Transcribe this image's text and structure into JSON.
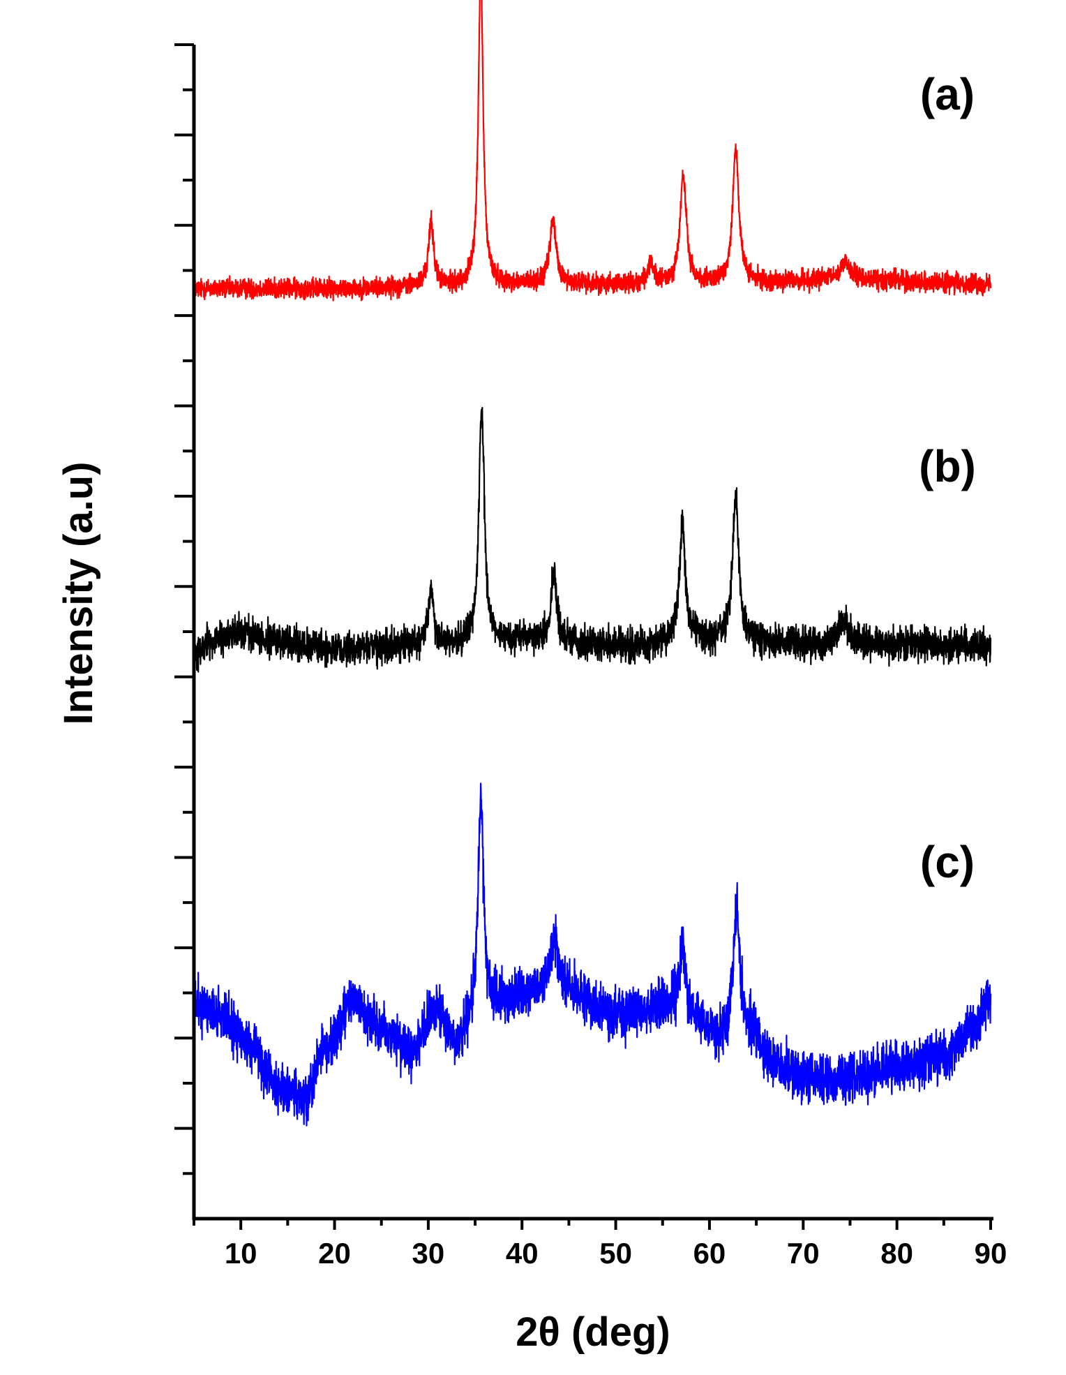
{
  "chart_data": {
    "type": "line",
    "title": "",
    "xlabel": "2θ (deg)",
    "ylabel": "Intensity (a.u)",
    "xlim": [
      5,
      90
    ],
    "ylim": [
      0,
      13
    ],
    "x_ticks": [
      10,
      20,
      30,
      40,
      50,
      60,
      70,
      80,
      90
    ],
    "grid": false,
    "y_tick_labels_shown": false,
    "series": [
      {
        "name": "(a)",
        "label": "(a)",
        "color": "#ff0000",
        "baseline": 10.3,
        "noise": 0.12,
        "background": [
          [
            5,
            0
          ],
          [
            20,
            0
          ],
          [
            30,
            0.02
          ],
          [
            40,
            0.05
          ],
          [
            60,
            0.05
          ],
          [
            75,
            0.1
          ],
          [
            90,
            0.05
          ]
        ],
        "peaks": [
          {
            "x": 30.3,
            "height": 0.7,
            "width": 0.35
          },
          {
            "x": 35.6,
            "height": 3.5,
            "width": 0.3
          },
          {
            "x": 43.3,
            "height": 0.7,
            "width": 0.4
          },
          {
            "x": 53.7,
            "height": 0.2,
            "width": 0.4
          },
          {
            "x": 57.2,
            "height": 1.2,
            "width": 0.4
          },
          {
            "x": 62.8,
            "height": 1.5,
            "width": 0.4
          },
          {
            "x": 74.5,
            "height": 0.2,
            "width": 0.6
          }
        ]
      },
      {
        "name": "(b)",
        "label": "(b)",
        "color": "#000000",
        "baseline": 6.3,
        "noise": 0.2,
        "background": [
          [
            5,
            -0.05
          ],
          [
            7,
            0.1
          ],
          [
            10,
            0.2
          ],
          [
            14,
            0.1
          ],
          [
            20,
            0
          ],
          [
            30,
            0.05
          ],
          [
            40,
            0.1
          ],
          [
            50,
            0.05
          ],
          [
            60,
            0.1
          ],
          [
            75,
            0.05
          ],
          [
            90,
            0.05
          ]
        ],
        "peaks": [
          {
            "x": 30.3,
            "height": 0.6,
            "width": 0.35
          },
          {
            "x": 35.7,
            "height": 2.6,
            "width": 0.35
          },
          {
            "x": 43.4,
            "height": 0.8,
            "width": 0.35
          },
          {
            "x": 57.1,
            "height": 1.3,
            "width": 0.4
          },
          {
            "x": 62.8,
            "height": 1.6,
            "width": 0.4
          },
          {
            "x": 74.3,
            "height": 0.3,
            "width": 0.6
          }
        ]
      },
      {
        "name": "(c)",
        "label": "(c)",
        "color": "#0000ff",
        "baseline": 1.8,
        "noise": 0.3,
        "background": [
          [
            5,
            0.55
          ],
          [
            8,
            0.45
          ],
          [
            11,
            0.15
          ],
          [
            14,
            -0.35
          ],
          [
            17,
            -0.45
          ],
          [
            19,
            0.1
          ],
          [
            22,
            0.6
          ],
          [
            25,
            0.3
          ],
          [
            28,
            0.05
          ],
          [
            31,
            0.5
          ],
          [
            33,
            0.1
          ],
          [
            35,
            0.4
          ],
          [
            38,
            0.6
          ],
          [
            42,
            0.75
          ],
          [
            45,
            0.7
          ],
          [
            50,
            0.45
          ],
          [
            55,
            0.55
          ],
          [
            59,
            0.35
          ],
          [
            61,
            0.2
          ],
          [
            64,
            0.3
          ],
          [
            67,
            -0.1
          ],
          [
            70,
            -0.25
          ],
          [
            75,
            -0.25
          ],
          [
            80,
            -0.15
          ],
          [
            85,
            0.0
          ],
          [
            88,
            0.3
          ],
          [
            90,
            0.6
          ]
        ],
        "peaks": [
          {
            "x": 35.6,
            "height": 2.4,
            "width": 0.35
          },
          {
            "x": 43.5,
            "height": 0.6,
            "width": 0.5
          },
          {
            "x": 57.1,
            "height": 0.8,
            "width": 0.4
          },
          {
            "x": 62.9,
            "height": 1.4,
            "width": 0.4
          }
        ]
      }
    ]
  }
}
